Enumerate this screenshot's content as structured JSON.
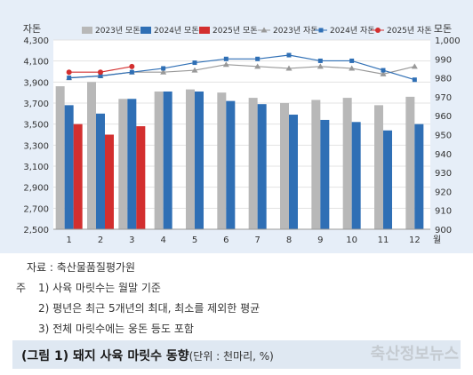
{
  "chart_data": {
    "type": "bar",
    "categories": [
      "1",
      "2",
      "3",
      "4",
      "5",
      "6",
      "7",
      "8",
      "9",
      "10",
      "11",
      "12"
    ],
    "x_unit": "월",
    "left_axis": {
      "title": "자돈",
      "ylim": [
        2500,
        4300
      ],
      "ticks": [
        "2,500",
        "2,700",
        "2,900",
        "3,100",
        "3,300",
        "3,500",
        "3,700",
        "3,900",
        "4,100",
        "4,300"
      ]
    },
    "right_axis": {
      "title": "모돈",
      "ylim": [
        900,
        1000
      ],
      "ticks": [
        "900",
        "910",
        "920",
        "930",
        "940",
        "950",
        "960",
        "970",
        "980",
        "990",
        "1,000"
      ]
    },
    "bar_series": [
      {
        "name": "2023년 모돈",
        "color": "#b8b8b8",
        "values": [
          3860,
          3900,
          3740,
          3810,
          3830,
          3800,
          3750,
          3700,
          3730,
          3750,
          3680,
          3760
        ]
      },
      {
        "name": "2024년 모돈",
        "color": "#2f6fb5",
        "values": [
          3680,
          3600,
          3740,
          3810,
          3810,
          3720,
          3690,
          3590,
          3540,
          3520,
          3440,
          3500
        ]
      },
      {
        "name": "2025년 모돈",
        "color": "#d32f2f",
        "values": [
          3500,
          3400,
          3480
        ]
      }
    ],
    "line_series": [
      {
        "name": "2023년 자돈",
        "color": "#999999",
        "marker": "triangle",
        "values": [
          980,
          981,
          983,
          983,
          984,
          987,
          986,
          985,
          986,
          985,
          982,
          986
        ]
      },
      {
        "name": "2024년 자돈",
        "color": "#2f6fb5",
        "marker": "square",
        "values": [
          980,
          981,
          983,
          985,
          988,
          990,
          990,
          992,
          989,
          989,
          984,
          979
        ]
      },
      {
        "name": "2025년 자돈",
        "color": "#d32f2f",
        "marker": "circle",
        "values": [
          983,
          983,
          986
        ]
      }
    ],
    "legend_position": "top"
  },
  "notes": {
    "source": "자료 : 축산물품질평가원",
    "label": "주",
    "note1": "1) 사육 마릿수는 월말 기준",
    "note2": "2) 평년은 최근 5개년의 최대, 최소를 제외한 평균",
    "note3": "3) 전체 마릿수에는 웅돈 등도 포함"
  },
  "caption": {
    "title": "(그림 1) 돼지 사육 마릿수 동향",
    "unit": "(단위 : 천마리, %)"
  },
  "watermark": "축산정보뉴스"
}
